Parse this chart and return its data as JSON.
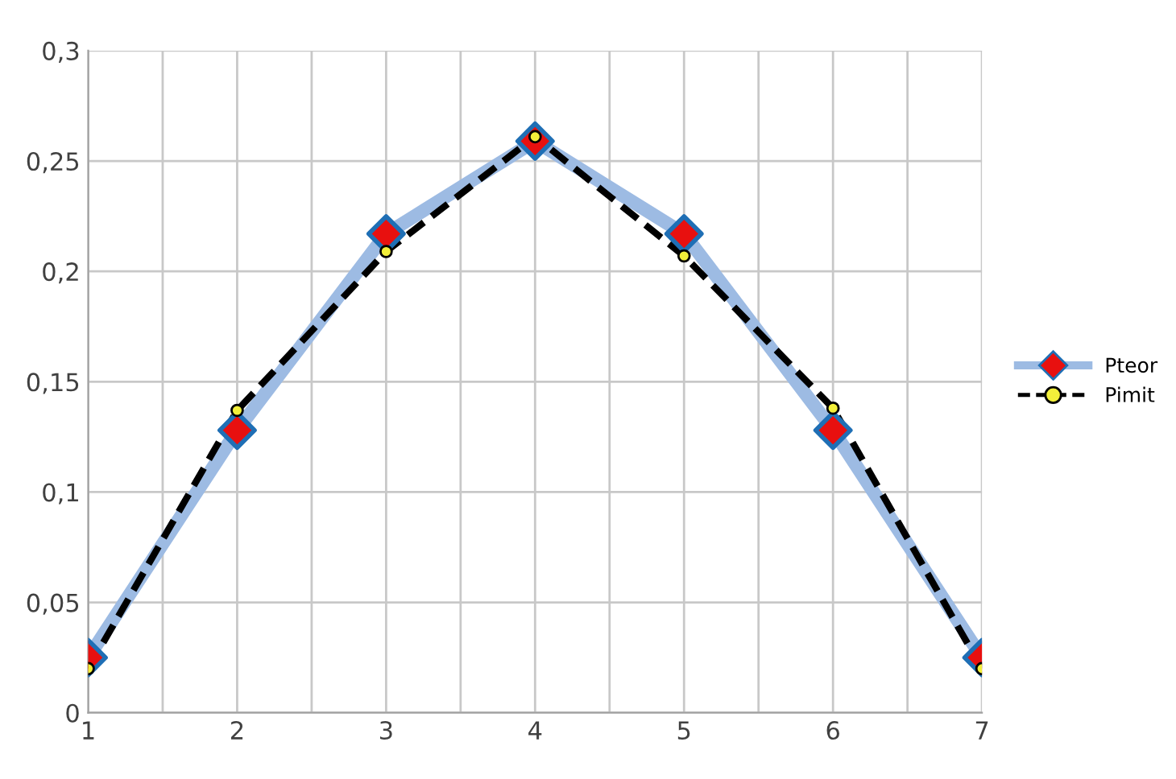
{
  "chart_data": {
    "type": "line",
    "x": [
      1,
      2,
      3,
      4,
      5,
      6,
      7
    ],
    "series": [
      {
        "name": "Pteor",
        "color": "#9dbbe3",
        "colors": [
          "#e8100f",
          "#e8100f",
          "#e8100f",
          "#e8100f",
          "#e8100f",
          "#e8100f",
          "#e8100f"
        ],
        "marker": "diamond",
        "line_style": "solid",
        "values": [
          0.025,
          0.128,
          0.217,
          0.259,
          0.217,
          0.128,
          0.025
        ]
      },
      {
        "name": "Pimit",
        "color": "#000000",
        "colors": [
          "#f2ef3a",
          "#f2ef3a",
          "#f2ef3a",
          "#f2ef3a",
          "#f2ef3a",
          "#f2ef3a",
          "#f2ef3a"
        ],
        "marker": "circle",
        "line_style": "dashed",
        "values": [
          0.02,
          0.137,
          0.209,
          0.261,
          0.207,
          0.138,
          0.02
        ]
      }
    ],
    "xlim": [
      1,
      7
    ],
    "xticks": [
      1,
      {
        "value": 1.5,
        "label": null
      },
      2,
      {
        "value": 2.5,
        "label": null
      },
      3,
      {
        "value": 3.5,
        "label": null
      },
      4,
      {
        "value": 4.5,
        "label": null
      },
      5,
      {
        "value": 5.5,
        "label": null
      },
      6,
      {
        "value": 6.5,
        "label": null
      },
      7
    ],
    "ylim": [
      0,
      0.3
    ],
    "yticks": [
      0,
      {
        "value": 0.05,
        "label": "0,05"
      },
      {
        "value": 0.1,
        "label": "0,1"
      },
      {
        "value": 0.15,
        "label": "0,15"
      },
      {
        "value": 0.2,
        "label": "0,2"
      },
      {
        "value": 0.25,
        "label": "0,25"
      },
      {
        "value": 0.3,
        "label": "0,3"
      }
    ],
    "grid": true,
    "legend": "right"
  }
}
